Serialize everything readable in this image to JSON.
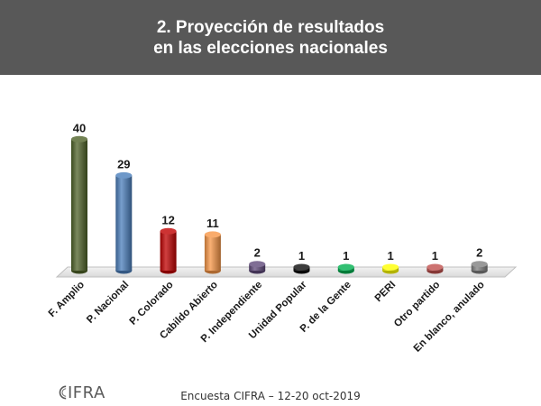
{
  "header": {
    "title_line1": "2. Proyección de resultados",
    "title_line2": "en las elecciones nacionales"
  },
  "chart_data": {
    "type": "bar",
    "categories": [
      "F. Amplio",
      "P. Nacional",
      "P. Colorado",
      "Cabildo Abierto",
      "P. Independiente",
      "Unidad Popular",
      "P. de la Gente",
      "PERI",
      "Otro partido",
      "En blanco, anulado"
    ],
    "values": [
      40,
      29,
      12,
      11,
      2,
      1,
      1,
      1,
      1,
      2
    ],
    "colors": [
      "#4f6228",
      "#4a7ebb",
      "#c00000",
      "#f79646",
      "#604a7b",
      "#0d0d0d",
      "#00b050",
      "#ffff00",
      "#c0504d",
      "#7f7f7f"
    ],
    "ylim": [
      0,
      42
    ],
    "title": "",
    "xlabel": "",
    "ylabel": "",
    "grid": false,
    "data_labels": true
  },
  "footer": {
    "source": "Encuesta CIFRA – 12-20 oct-2019",
    "logo_text": "IFRA"
  }
}
